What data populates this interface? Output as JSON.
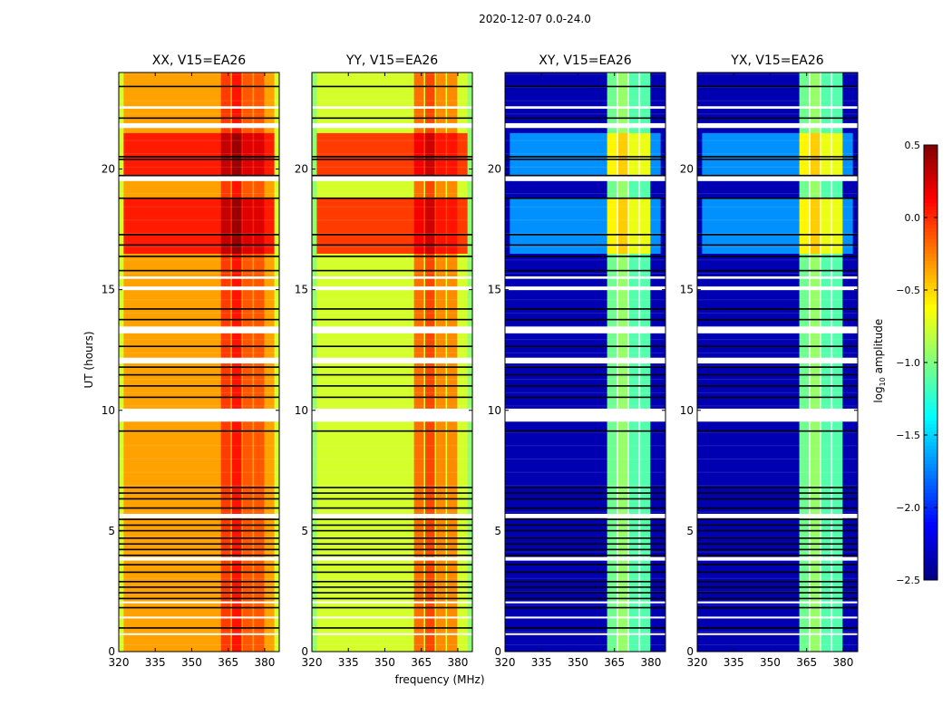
{
  "chart_data": {
    "type": "heatmap",
    "title": "2020-12-07 0.0-24.0",
    "xlabel": "frequency (MHz)",
    "ylabel": "UT (hours)",
    "xlim": [
      320,
      386
    ],
    "ylim": [
      0,
      24
    ],
    "xticks": [
      320,
      335,
      350,
      365,
      380
    ],
    "xtick_labels": [
      "320",
      "335",
      "350",
      "365",
      "380"
    ],
    "yticks": [
      0,
      5,
      10,
      15,
      20
    ],
    "ytick_labels": [
      "0",
      "5",
      "10",
      "15",
      "20"
    ],
    "colorbar": {
      "label_main": "log",
      "label_sub": "10",
      "label_rest": " amplitude",
      "range": [
        -2.5,
        0.5
      ],
      "ticks": [
        0.5,
        0.0,
        -0.5,
        -1.0,
        -1.5,
        -2.0,
        -2.5
      ],
      "tick_labels": [
        "0.5",
        "0.0",
        "−0.5",
        "−1.0",
        "−1.5",
        "−2.0",
        "−2.5"
      ],
      "colormap": "jet"
    },
    "active_periods": [
      [
        16.5,
        18.8
      ],
      [
        19.6,
        21.5
      ]
    ],
    "flagged_times": [
      [
        22.5,
        22.6
      ],
      [
        21.7,
        21.9
      ],
      [
        19.5,
        19.7
      ],
      [
        15.45,
        15.55
      ],
      [
        14.98,
        15.13
      ],
      [
        13.19,
        13.47
      ],
      [
        11.94,
        12.18
      ],
      [
        9.53,
        10.07
      ],
      [
        5.53,
        5.71
      ],
      [
        3.77,
        3.92
      ],
      [
        2.0,
        2.08
      ],
      [
        1.38,
        1.45
      ],
      [
        0.7,
        0.76
      ]
    ],
    "black_lines": [
      23.42,
      22.11,
      20.51,
      20.4,
      19.73,
      18.79,
      17.28,
      16.85,
      16.38,
      15.79,
      14.2,
      13.76,
      12.65,
      11.79,
      11.47,
      11.01,
      10.54,
      9.14,
      6.8,
      6.57,
      6.33,
      5.95,
      5.48,
      5.24,
      5.01,
      4.7,
      4.46,
      4.23,
      3.99,
      3.6,
      3.29,
      2.9,
      2.67,
      2.44,
      2.2,
      1.82,
      0.98
    ],
    "rfi_channels": [
      [
        362,
        366
      ],
      [
        366.6,
        370.5
      ],
      [
        371,
        375
      ],
      [
        375.6,
        379.8
      ]
    ],
    "panels": [
      {
        "title": "XX, V15=EA26",
        "quiet": -0.35,
        "active": 0.05,
        "rfi_quiet": -0.05,
        "rfi_active": 0.3,
        "edge": -0.75,
        "channel_gaps_flagged": false
      },
      {
        "title": "YY, V15=EA26",
        "quiet": -0.75,
        "active": -0.05,
        "rfi_quiet": -0.2,
        "rfi_active": 0.15,
        "edge": -0.95,
        "channel_gaps_flagged": false
      },
      {
        "title": "XY, V15=EA26",
        "quiet": -2.35,
        "active": -1.7,
        "rfi_quiet": -1.05,
        "rfi_active": -0.6,
        "edge": -2.35,
        "channel_gaps_flagged": true
      },
      {
        "title": "YX, V15=EA26",
        "quiet": -2.35,
        "active": -1.7,
        "rfi_quiet": -1.05,
        "rfi_active": -0.6,
        "edge": -2.35,
        "channel_gaps_flagged": true
      }
    ]
  }
}
